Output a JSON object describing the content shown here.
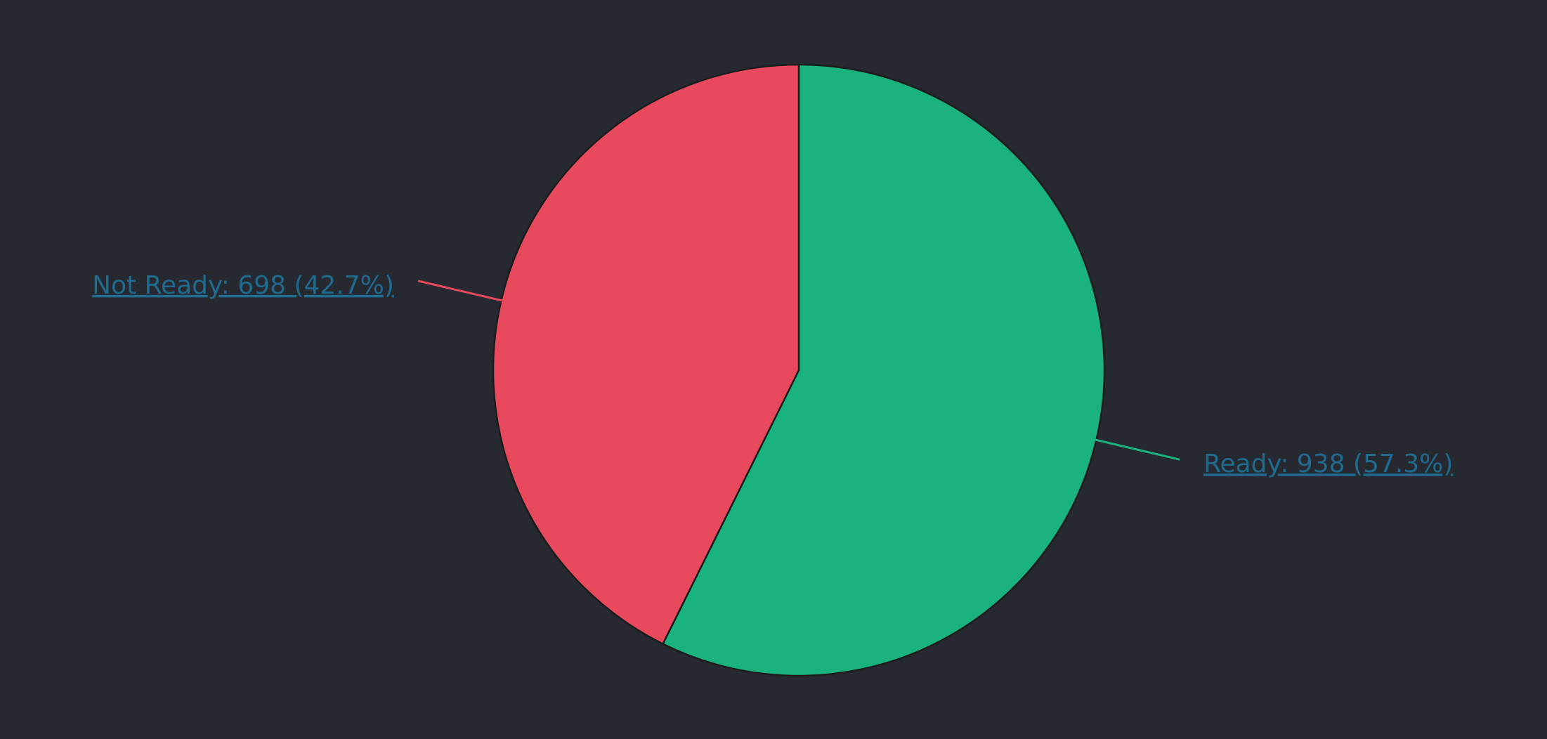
{
  "chart_data": {
    "type": "pie",
    "values": [
      938,
      698
    ],
    "value_labels": [
      "Ready: 938 (57.3%)",
      "Not Ready: 698 (42.7%)"
    ],
    "colors": [
      "#1ab37f",
      "#e8495c"
    ]
  }
}
